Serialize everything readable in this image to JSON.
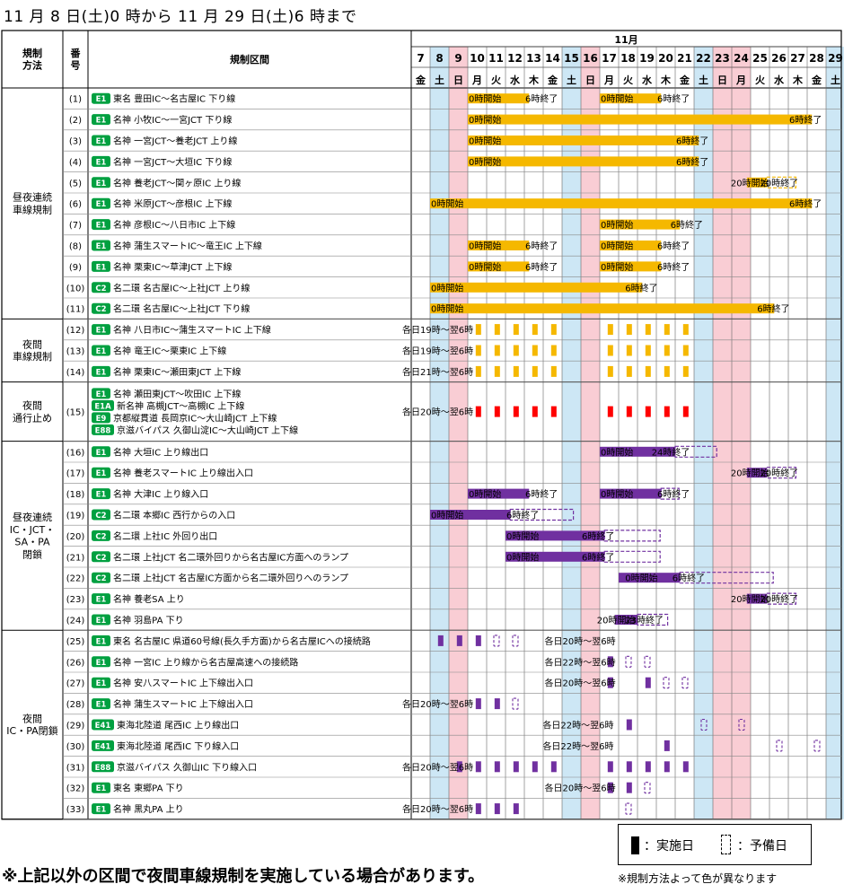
{
  "title": "11 月 8 日(土)0 時から 11 月 29 日(土)6 時まで",
  "header": {
    "method": "規制\n方法",
    "number": "番\n号",
    "section": "規制区間",
    "month": "11月"
  },
  "days": [
    {
      "d": "7",
      "w": "金",
      "t": "n"
    },
    {
      "d": "8",
      "w": "土",
      "t": "sat"
    },
    {
      "d": "9",
      "w": "日",
      "t": "sun"
    },
    {
      "d": "10",
      "w": "月",
      "t": "n"
    },
    {
      "d": "11",
      "w": "火",
      "t": "n"
    },
    {
      "d": "12",
      "w": "水",
      "t": "n"
    },
    {
      "d": "13",
      "w": "木",
      "t": "n"
    },
    {
      "d": "14",
      "w": "金",
      "t": "n"
    },
    {
      "d": "15",
      "w": "土",
      "t": "sat"
    },
    {
      "d": "16",
      "w": "日",
      "t": "sun"
    },
    {
      "d": "17",
      "w": "月",
      "t": "n"
    },
    {
      "d": "18",
      "w": "火",
      "t": "n"
    },
    {
      "d": "19",
      "w": "水",
      "t": "n"
    },
    {
      "d": "20",
      "w": "木",
      "t": "n"
    },
    {
      "d": "21",
      "w": "金",
      "t": "n"
    },
    {
      "d": "22",
      "w": "土",
      "t": "sat"
    },
    {
      "d": "23",
      "w": "日",
      "t": "sun"
    },
    {
      "d": "24",
      "w": "月",
      "t": "sun"
    },
    {
      "d": "25",
      "w": "火",
      "t": "n"
    },
    {
      "d": "26",
      "w": "水",
      "t": "n"
    },
    {
      "d": "27",
      "w": "木",
      "t": "n"
    },
    {
      "d": "28",
      "w": "金",
      "t": "n"
    },
    {
      "d": "29",
      "w": "土",
      "t": "sat"
    }
  ],
  "colors": {
    "orange": "#f5b800",
    "purple": "#7030a0",
    "red": "#ff0000",
    "sat": "#cde7f5",
    "sun": "#f9cdd4",
    "road": "#00a040"
  },
  "groups": [
    {
      "label": "昼夜連続\n車線規制",
      "from": 0,
      "to": 10
    },
    {
      "label": "夜間\n車線規制",
      "from": 11,
      "to": 13
    },
    {
      "label": "夜間\n通行止め",
      "from": 14,
      "to": 14
    },
    {
      "label": "昼夜連続\nIC・JCT・\nSA・PA\n閉鎖",
      "from": 15,
      "to": 23
    },
    {
      "label": "夜間\nIC・PA閉鎖",
      "from": 24,
      "to": 32
    }
  ],
  "rows": [
    {
      "no": "(1)",
      "lines": [
        {
          "r": "E1",
          "t": "東名 豊田IC～名古屋IC 下り線"
        }
      ],
      "color": "orange",
      "bars": [
        [
          10,
          13.25
        ],
        [
          17,
          20.25
        ]
      ],
      "labels": [
        [
          10,
          "0時開始"
        ],
        [
          13.0,
          "6時終了"
        ],
        [
          17,
          "0時開始"
        ],
        [
          20.0,
          "6時終了"
        ]
      ]
    },
    {
      "no": "(2)",
      "lines": [
        {
          "r": "E1",
          "t": "名神 小牧IC～一宮JCT 下り線"
        }
      ],
      "color": "orange",
      "bars": [
        [
          10,
          28.25
        ]
      ],
      "labels": [
        [
          10,
          "0時開始"
        ],
        [
          27.0,
          "6時終了"
        ]
      ]
    },
    {
      "no": "(3)",
      "lines": [
        {
          "r": "E1",
          "t": "名神 一宮JCT～養老JCT 上り線"
        }
      ],
      "color": "orange",
      "bars": [
        [
          10,
          22.25
        ]
      ],
      "labels": [
        [
          10,
          "0時開始"
        ],
        [
          21.0,
          "6時終了"
        ]
      ]
    },
    {
      "no": "(4)",
      "lines": [
        {
          "r": "E1",
          "t": "名神 一宮JCT～大垣IC 下り線"
        }
      ],
      "color": "orange",
      "bars": [
        [
          10,
          22.25
        ]
      ],
      "labels": [
        [
          10,
          "0時開始"
        ],
        [
          21.0,
          "6時終了"
        ]
      ]
    },
    {
      "no": "(5)",
      "lines": [
        {
          "r": "E1",
          "t": "名神 養老JCT～関ヶ原IC 上り線"
        }
      ],
      "color": "orange",
      "bars": [
        [
          24.8,
          25.85
        ]
      ],
      "dash": [
        [
          25.85,
          27.4
        ]
      ],
      "labels": [
        [
          23.9,
          "20時開始"
        ],
        [
          25.45,
          "20時終了"
        ]
      ]
    },
    {
      "no": "(6)",
      "lines": [
        {
          "r": "E1",
          "t": "名神 米原JCT～彦根IC 上下線"
        }
      ],
      "color": "orange",
      "bars": [
        [
          8,
          28.25
        ]
      ],
      "labels": [
        [
          8,
          "0時開始"
        ],
        [
          27.0,
          "6時終了"
        ]
      ]
    },
    {
      "no": "(7)",
      "lines": [
        {
          "r": "E1",
          "t": "名神 彦根IC～八日市IC 上下線"
        }
      ],
      "color": "orange",
      "bars": [
        [
          17,
          21.25
        ]
      ],
      "labels": [
        [
          17,
          "0時開始"
        ],
        [
          20.7,
          "6時終了"
        ]
      ]
    },
    {
      "no": "(8)",
      "lines": [
        {
          "r": "E1",
          "t": "名神 蒲生スマートIC～竜王IC 上下線"
        }
      ],
      "color": "orange",
      "bars": [
        [
          10,
          13.25
        ],
        [
          17,
          20.25
        ]
      ],
      "labels": [
        [
          10,
          "0時開始"
        ],
        [
          13.0,
          "6時終了"
        ],
        [
          17,
          "0時開始"
        ],
        [
          20.0,
          "6時終了"
        ]
      ]
    },
    {
      "no": "(9)",
      "lines": [
        {
          "r": "E1",
          "t": "名神 栗東IC～草津JCT 上下線"
        }
      ],
      "color": "orange",
      "bars": [
        [
          10,
          13.25
        ],
        [
          17,
          20.25
        ]
      ],
      "labels": [
        [
          10,
          "0時開始"
        ],
        [
          13.0,
          "6時終了"
        ],
        [
          17,
          "0時開始"
        ],
        [
          20.0,
          "6時終了"
        ]
      ]
    },
    {
      "no": "(10)",
      "lines": [
        {
          "r": "C2",
          "t": "名二環 名古屋IC～上社JCT 上り線"
        }
      ],
      "color": "orange",
      "bars": [
        [
          8,
          19.25
        ]
      ],
      "labels": [
        [
          8,
          "0時開始"
        ],
        [
          18.3,
          "6時終了"
        ]
      ]
    },
    {
      "no": "(11)",
      "lines": [
        {
          "r": "C2",
          "t": "名二環 名古屋IC～上社JCT 下り線"
        }
      ],
      "color": "orange",
      "bars": [
        [
          8,
          26.25
        ]
      ],
      "labels": [
        [
          8,
          "0時開始"
        ],
        [
          25.3,
          "6時終了"
        ]
      ]
    },
    {
      "no": "(12)",
      "lines": [
        {
          "r": "E1",
          "t": "名神 八日市IC～蒲生スマートIC 上下線"
        }
      ],
      "color": "orange",
      "note": [
        7.0,
        "各日19時～翌6時"
      ],
      "nights": [
        10,
        11,
        12,
        13,
        14,
        17,
        18,
        19,
        20,
        21
      ]
    },
    {
      "no": "(13)",
      "lines": [
        {
          "r": "E1",
          "t": "名神 竜王IC～栗東IC 上下線"
        }
      ],
      "color": "orange",
      "note": [
        7.0,
        "各日19時～翌6時"
      ],
      "nights": [
        10,
        11,
        12,
        13,
        14,
        17,
        18,
        19,
        20,
        21
      ]
    },
    {
      "no": "(14)",
      "lines": [
        {
          "r": "E1",
          "t": "名神 栗東IC～瀬田東JCT 上下線"
        }
      ],
      "color": "orange",
      "note": [
        7.0,
        "各日21時～翌6時"
      ],
      "nights": [
        10,
        11,
        12,
        13,
        14,
        17,
        18,
        19,
        20,
        21
      ]
    },
    {
      "no": "(15)",
      "lines": [
        {
          "r": "E1",
          "t": "名神 瀬田東JCT～吹田IC 上下線"
        },
        {
          "r": "E1A",
          "t": "新名神 高槻JCT～高槻IC 上下線"
        },
        {
          "r": "E9",
          "t": "京都縦貫道 長岡京IC～大山崎JCT 上下線"
        },
        {
          "r": "E88",
          "t": "京滋バイパス 久御山淀IC～大山崎JCT 上下線"
        }
      ],
      "color": "red",
      "note": [
        7.0,
        "各日20時～翌6時"
      ],
      "nights": [
        10,
        11,
        12,
        13,
        14,
        17,
        18,
        19,
        20,
        21
      ]
    },
    {
      "no": "(16)",
      "lines": [
        {
          "r": "E1",
          "t": "名神 大垣IC 上り線出口"
        }
      ],
      "color": "purple",
      "bars": [
        [
          17,
          21.0
        ]
      ],
      "dash": [
        [
          21.0,
          23.2
        ]
      ],
      "labels": [
        [
          17,
          "0時開始"
        ],
        [
          19.7,
          "24時終了"
        ]
      ]
    },
    {
      "no": "(17)",
      "lines": [
        {
          "r": "E1",
          "t": "名神 養老スマートIC 上り線出入口"
        }
      ],
      "color": "purple",
      "bars": [
        [
          24.8,
          25.85
        ]
      ],
      "dash": [
        [
          25.85,
          27.4
        ]
      ],
      "labels": [
        [
          23.9,
          "20時開始"
        ],
        [
          25.45,
          "20時終了"
        ]
      ]
    },
    {
      "no": "(18)",
      "lines": [
        {
          "r": "E1",
          "t": "名神 大津IC 上り線入口"
        }
      ],
      "color": "purple",
      "bars": [
        [
          10,
          13.25
        ],
        [
          17,
          20.25
        ]
      ],
      "dash": [
        [
          20.25,
          21.2
        ]
      ],
      "labels": [
        [
          10,
          "0時開始"
        ],
        [
          13.0,
          "6時終了"
        ],
        [
          17,
          "0時開始"
        ],
        [
          20.0,
          "6時終了"
        ]
      ]
    },
    {
      "no": "(19)",
      "lines": [
        {
          "r": "C2",
          "t": "名二環 本郷IC 西行からの入口"
        }
      ],
      "color": "purple",
      "bars": [
        [
          8,
          12.25
        ]
      ],
      "dash": [
        [
          12.25,
          15.6
        ]
      ],
      "labels": [
        [
          8,
          "0時開始"
        ],
        [
          12.0,
          "6時終了"
        ]
      ]
    },
    {
      "no": "(20)",
      "lines": [
        {
          "r": "C2",
          "t": "名二環 上社IC 外回り出口"
        }
      ],
      "color": "purple",
      "bars": [
        [
          12,
          17.25
        ]
      ],
      "dash": [
        [
          17.25,
          20.2
        ]
      ],
      "labels": [
        [
          12,
          "0時開始"
        ],
        [
          16.0,
          "6時終了"
        ]
      ]
    },
    {
      "no": "(21)",
      "lines": [
        {
          "r": "C2",
          "t": "名二環 上社JCT 名二環外回りから名古屋IC方面へのランプ"
        }
      ],
      "color": "purple",
      "bars": [
        [
          12,
          17.25
        ]
      ],
      "dash": [
        [
          17.25,
          20.2
        ]
      ],
      "labels": [
        [
          12,
          "0時開始"
        ],
        [
          16.0,
          "6時終了"
        ]
      ]
    },
    {
      "no": "(22)",
      "lines": [
        {
          "r": "C2",
          "t": "名二環 上社JCT 名古屋IC方面から名二環外回りへのランプ"
        }
      ],
      "color": "purple",
      "bars": [
        [
          18,
          21.25
        ]
      ],
      "dash": [
        [
          21.25,
          26.2
        ]
      ],
      "labels": [
        [
          18.3,
          "0時開始"
        ],
        [
          20.8,
          "6時終了"
        ]
      ]
    },
    {
      "no": "(23)",
      "lines": [
        {
          "r": "E1",
          "t": "名神 養老SA 上り"
        }
      ],
      "color": "purple",
      "bars": [
        [
          24.8,
          25.85
        ]
      ],
      "dash": [
        [
          25.85,
          27.4
        ]
      ],
      "labels": [
        [
          23.9,
          "20時開始"
        ],
        [
          25.45,
          "20時終了"
        ]
      ]
    },
    {
      "no": "(24)",
      "lines": [
        {
          "r": "E1",
          "t": "名神 羽島PA 下り"
        }
      ],
      "color": "purple",
      "bars": [
        [
          17.8,
          19.0
        ]
      ],
      "dash": [
        [
          19.0,
          20.6
        ]
      ],
      "labels": [
        [
          16.8,
          "20時開始"
        ],
        [
          18.3,
          "23時終了"
        ]
      ]
    },
    {
      "no": "(25)",
      "lines": [
        {
          "r": "E1",
          "t": "東名 名古屋IC 県道60号線(長久手方面)から名古屋ICへの接続路"
        }
      ],
      "color": "purple",
      "note": [
        14.55,
        "各日20時～翌6時"
      ],
      "nights": [
        8,
        9,
        10
      ],
      "spares": [
        11,
        12
      ]
    },
    {
      "no": "(26)",
      "lines": [
        {
          "r": "E1",
          "t": "名神 一宮IC 上り線から名古屋高速への接続路"
        }
      ],
      "color": "purple",
      "note": [
        14.55,
        "各日22時～翌6時"
      ],
      "nights": [
        17
      ],
      "spares": [
        18,
        19
      ]
    },
    {
      "no": "(27)",
      "lines": [
        {
          "r": "E1",
          "t": "名神 安八スマートIC 上下線出入口"
        }
      ],
      "color": "purple",
      "note": [
        14.55,
        "各日20時～翌6時"
      ],
      "nights": [
        17,
        19
      ],
      "spares": [
        20,
        21
      ]
    },
    {
      "no": "(28)",
      "lines": [
        {
          "r": "E1",
          "t": "名神 蒲生スマートIC 上下線出入口"
        }
      ],
      "color": "purple",
      "note": [
        7.0,
        "各日20時～翌6時"
      ],
      "nights": [
        10,
        11
      ],
      "spares": [
        12
      ]
    },
    {
      "no": "(29)",
      "lines": [
        {
          "r": "E41",
          "t": "東海北陸道 尾西IC 上り線出口"
        }
      ],
      "color": "purple",
      "note": [
        14.45,
        "各日22時～翌6時"
      ],
      "nights": [
        18
      ],
      "spares": [
        22,
        24
      ]
    },
    {
      "no": "(30)",
      "lines": [
        {
          "r": "E41",
          "t": "東海北陸道 尾西IC 下り線入口"
        }
      ],
      "color": "purple",
      "note": [
        14.45,
        "各日22時～翌6時"
      ],
      "nights": [
        20
      ],
      "spares": [
        26,
        28
      ]
    },
    {
      "no": "(31)",
      "lines": [
        {
          "r": "E88",
          "t": "京滋バイパス 久御山IC 下り線入口"
        }
      ],
      "color": "purple",
      "note": [
        7.0,
        "各日20時～翌6時"
      ],
      "nights": [
        9,
        10,
        11,
        12,
        13,
        14,
        17,
        18,
        19,
        20,
        21
      ]
    },
    {
      "no": "(32)",
      "lines": [
        {
          "r": "E1",
          "t": "東名 東郷PA 下り"
        }
      ],
      "color": "purple",
      "note": [
        14.55,
        "各日20時～翌6時"
      ],
      "nights": [
        17,
        18
      ],
      "spares": [
        19
      ]
    },
    {
      "no": "(33)",
      "lines": [
        {
          "r": "E1",
          "t": "名神 黒丸PA 上り"
        }
      ],
      "color": "purple",
      "note": [
        7.0,
        "各日20時～翌6時"
      ],
      "nights": [
        10,
        11,
        12
      ],
      "spares": [
        18
      ]
    }
  ],
  "legend": {
    "solid": "：実施日",
    "dash": "：予備日",
    "note": "※規制方法よって色が異なります"
  },
  "footnote": "※上記以外の区間で夜間車線規制を実施している場合があります。"
}
